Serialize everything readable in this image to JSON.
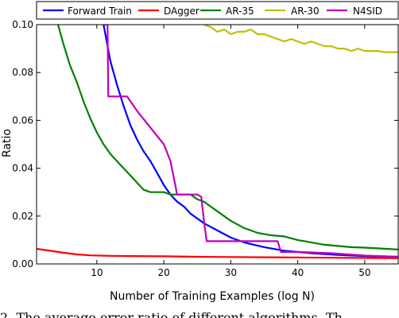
{
  "chart_data": {
    "type": "line",
    "xlabel": "Number of Training Examples (log N)",
    "ylabel": "Ratio",
    "xlim": [
      1,
      55
    ],
    "ylim": [
      0,
      0.1
    ],
    "xticks": [
      10,
      20,
      30,
      40,
      50
    ],
    "yticks": [
      0.0,
      0.02,
      0.04,
      0.06,
      0.08,
      0.1
    ],
    "ytick_labels": [
      "0.00",
      "0.02",
      "0.04",
      "0.06",
      "0.08",
      "0.10"
    ],
    "grid": false,
    "legend_placement": "top, above plot",
    "series": [
      {
        "name": "Forward Train",
        "color": "#0000ff",
        "points": [
          [
            11,
            0.1
          ],
          [
            12,
            0.085
          ],
          [
            13,
            0.075
          ],
          [
            14,
            0.066
          ],
          [
            15,
            0.058
          ],
          [
            16,
            0.052
          ],
          [
            17,
            0.047
          ],
          [
            18,
            0.043
          ],
          [
            19,
            0.038
          ],
          [
            20,
            0.033
          ],
          [
            21,
            0.029
          ],
          [
            22,
            0.026
          ],
          [
            23,
            0.024
          ],
          [
            24,
            0.021
          ],
          [
            26,
            0.017
          ],
          [
            28,
            0.014
          ],
          [
            30,
            0.011
          ],
          [
            32,
            0.009
          ],
          [
            35,
            0.007
          ],
          [
            38,
            0.0055
          ],
          [
            42,
            0.0045
          ],
          [
            46,
            0.0038
          ],
          [
            50,
            0.0033
          ],
          [
            55,
            0.003
          ]
        ]
      },
      {
        "name": "DAgger",
        "color": "#ff0000",
        "points": [
          [
            1,
            0.0063
          ],
          [
            3,
            0.0055
          ],
          [
            5,
            0.0047
          ],
          [
            7,
            0.004
          ],
          [
            9,
            0.0036
          ],
          [
            12,
            0.0034
          ],
          [
            15,
            0.0033
          ],
          [
            20,
            0.0032
          ],
          [
            25,
            0.003
          ],
          [
            30,
            0.0029
          ],
          [
            35,
            0.0028
          ],
          [
            40,
            0.0027
          ],
          [
            45,
            0.0026
          ],
          [
            50,
            0.0025
          ],
          [
            55,
            0.0024
          ]
        ]
      },
      {
        "name": "AR-35",
        "color": "#008000",
        "points": [
          [
            4.2,
            0.1
          ],
          [
            5,
            0.092
          ],
          [
            6,
            0.083
          ],
          [
            7,
            0.076
          ],
          [
            8,
            0.068
          ],
          [
            9,
            0.061
          ],
          [
            10,
            0.055
          ],
          [
            11,
            0.05
          ],
          [
            12,
            0.046
          ],
          [
            13,
            0.043
          ],
          [
            14,
            0.04
          ],
          [
            15,
            0.037
          ],
          [
            16,
            0.034
          ],
          [
            17,
            0.031
          ],
          [
            18,
            0.03
          ],
          [
            20,
            0.03
          ],
          [
            21,
            0.029
          ],
          [
            22,
            0.029
          ],
          [
            24,
            0.029
          ],
          [
            25,
            0.027
          ],
          [
            26,
            0.026
          ],
          [
            28,
            0.022
          ],
          [
            30,
            0.018
          ],
          [
            32,
            0.015
          ],
          [
            34,
            0.013
          ],
          [
            36,
            0.012
          ],
          [
            38,
            0.0115
          ],
          [
            40,
            0.01
          ],
          [
            42,
            0.009
          ],
          [
            44,
            0.008
          ],
          [
            46,
            0.0075
          ],
          [
            48,
            0.007
          ],
          [
            50,
            0.0068
          ],
          [
            52,
            0.0065
          ],
          [
            55,
            0.006
          ]
        ]
      },
      {
        "name": "AR-30",
        "color": "#bfbf00",
        "points": [
          [
            26,
            0.1
          ],
          [
            27,
            0.099
          ],
          [
            28,
            0.097
          ],
          [
            29,
            0.098
          ],
          [
            30,
            0.096
          ],
          [
            31,
            0.097
          ],
          [
            32,
            0.097
          ],
          [
            33,
            0.098
          ],
          [
            34,
            0.096
          ],
          [
            35,
            0.096
          ],
          [
            36,
            0.095
          ],
          [
            37,
            0.094
          ],
          [
            38,
            0.093
          ],
          [
            39,
            0.094
          ],
          [
            40,
            0.093
          ],
          [
            41,
            0.092
          ],
          [
            42,
            0.093
          ],
          [
            43,
            0.092
          ],
          [
            44,
            0.091
          ],
          [
            45,
            0.091
          ],
          [
            46,
            0.09
          ],
          [
            47,
            0.09
          ],
          [
            48,
            0.089
          ],
          [
            49,
            0.09
          ],
          [
            50,
            0.089
          ],
          [
            51,
            0.089
          ],
          [
            52,
            0.089
          ],
          [
            53,
            0.0885
          ],
          [
            55,
            0.0885
          ]
        ]
      },
      {
        "name": "N4SID",
        "color": "#bf00bf",
        "points": [
          [
            11.2,
            0.1
          ],
          [
            11.6,
            0.1
          ],
          [
            11.7,
            0.07
          ],
          [
            14,
            0.07
          ],
          [
            14.5,
            0.07
          ],
          [
            16,
            0.064
          ],
          [
            18,
            0.057
          ],
          [
            20,
            0.05
          ],
          [
            21,
            0.043
          ],
          [
            22,
            0.029
          ],
          [
            25,
            0.029
          ],
          [
            25.6,
            0.028
          ],
          [
            26,
            0.018
          ],
          [
            26.4,
            0.0095
          ],
          [
            30,
            0.0095
          ],
          [
            33,
            0.0095
          ],
          [
            37,
            0.0095
          ],
          [
            37.5,
            0.005
          ],
          [
            40,
            0.005
          ],
          [
            45,
            0.0045
          ],
          [
            50,
            0.0035
          ],
          [
            55,
            0.003
          ]
        ]
      }
    ]
  },
  "caption": "2. The average error ratio of different algorithms. Th"
}
